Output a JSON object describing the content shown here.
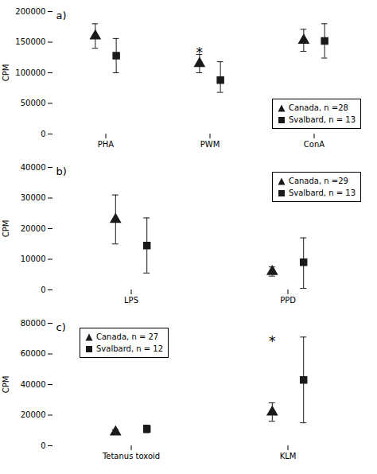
{
  "chart_data": [
    {
      "type": "scatter",
      "title": "a)",
      "ylabel": "CPM",
      "categories": [
        "PHA",
        "PWM",
        "ConA"
      ],
      "ylim": [
        0,
        200000
      ],
      "yticks": [
        0,
        50000,
        100000,
        150000,
        200000
      ],
      "legend": "lower right",
      "series": [
        {
          "name": "Canada, n =28",
          "color": "#1a1a1a",
          "marker": "triangle",
          "values": [
            160000,
            115000,
            153000
          ],
          "error_lo": [
            20000,
            15000,
            18000
          ],
          "error_hi": [
            20000,
            15000,
            18000
          ]
        },
        {
          "name": "Svalbard, n = 13",
          "color": "#1a1a1a",
          "marker": "square",
          "values": [
            128000,
            88000,
            152000
          ],
          "error_lo": [
            28000,
            20000,
            28000
          ],
          "error_hi": [
            28000,
            30000,
            28000
          ]
        }
      ],
      "annotations": [
        {
          "text": "*",
          "x": "PWM",
          "y": 125000
        }
      ]
    },
    {
      "type": "scatter",
      "title": "b)",
      "ylabel": "CPM",
      "categories": [
        "LPS",
        "PPD"
      ],
      "ylim": [
        0,
        40000
      ],
      "yticks": [
        0,
        10000,
        20000,
        30000,
        40000
      ],
      "legend": "upper right",
      "series": [
        {
          "name": "Canada, n =29",
          "color": "#1a1a1a",
          "marker": "triangle",
          "values": [
            23000,
            6000
          ],
          "error_lo": [
            8000,
            1500
          ],
          "error_hi": [
            8000,
            1500
          ]
        },
        {
          "name": "Svalbard, n = 13",
          "color": "#1a1a1a",
          "marker": "square",
          "values": [
            14500,
            9000
          ],
          "error_lo": [
            9000,
            8500
          ],
          "error_hi": [
            9000,
            8000
          ]
        }
      ],
      "annotations": []
    },
    {
      "type": "scatter",
      "title": "c)",
      "ylabel": "CPM",
      "categories": [
        "Tetanus toxoid",
        "KLM"
      ],
      "ylim": [
        0,
        80000
      ],
      "yticks": [
        0,
        20000,
        40000,
        60000,
        80000
      ],
      "legend": "upper left",
      "series": [
        {
          "name": "Canada, n = 27",
          "color": "#1a1a1a",
          "marker": "triangle",
          "values": [
            9000,
            22000
          ],
          "error_lo": [
            1500,
            6000
          ],
          "error_hi": [
            1500,
            6000
          ]
        },
        {
          "name": "Svalbard, n = 12",
          "color": "#1a1a1a",
          "marker": "square",
          "values": [
            11000,
            43000
          ],
          "error_lo": [
            2500,
            28000
          ],
          "error_hi": [
            2500,
            28000
          ]
        }
      ],
      "annotations": [
        {
          "text": "*",
          "x": "KLM",
          "y": 65000
        }
      ]
    }
  ]
}
